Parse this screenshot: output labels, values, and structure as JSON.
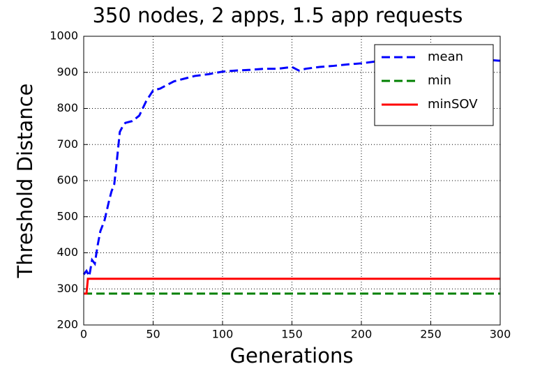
{
  "chart_data": {
    "type": "line",
    "title": "350 nodes, 2 apps, 1.5 app requests",
    "xlabel": "Generations",
    "ylabel": "Threshold Distance",
    "xlim": [
      0,
      300
    ],
    "ylim": [
      200,
      1000
    ],
    "xticks": [
      0,
      50,
      100,
      150,
      200,
      250,
      300
    ],
    "yticks": [
      200,
      300,
      400,
      500,
      600,
      700,
      800,
      900,
      1000
    ],
    "grid": true,
    "legend": "upper right",
    "series": [
      {
        "name": "mean",
        "color": "#0000ff",
        "linestyle": "dashed",
        "x": [
          0,
          2,
          4,
          6,
          8,
          10,
          12,
          15,
          18,
          20,
          22,
          24,
          26,
          28,
          30,
          35,
          40,
          45,
          50,
          55,
          60,
          65,
          70,
          75,
          80,
          90,
          100,
          110,
          120,
          130,
          140,
          150,
          155,
          160,
          170,
          180,
          190,
          200,
          210,
          220,
          230,
          240,
          250,
          260,
          270,
          280,
          290,
          300
        ],
        "values": [
          340,
          350,
          335,
          380,
          370,
          420,
          460,
          490,
          540,
          570,
          590,
          660,
          735,
          750,
          760,
          765,
          780,
          820,
          850,
          855,
          865,
          875,
          880,
          885,
          890,
          895,
          902,
          905,
          907,
          910,
          910,
          915,
          905,
          910,
          915,
          918,
          922,
          925,
          930,
          935,
          935,
          935,
          935,
          935,
          935,
          935,
          935,
          932
        ]
      },
      {
        "name": "min",
        "color": "#008000",
        "linestyle": "dashed",
        "x": [
          0,
          300
        ],
        "values": [
          287,
          287
        ]
      },
      {
        "name": "minSOV",
        "color": "#ff0000",
        "linestyle": "solid",
        "x": [
          0,
          2,
          3,
          300
        ],
        "values": [
          287,
          287,
          328,
          328
        ]
      }
    ]
  }
}
